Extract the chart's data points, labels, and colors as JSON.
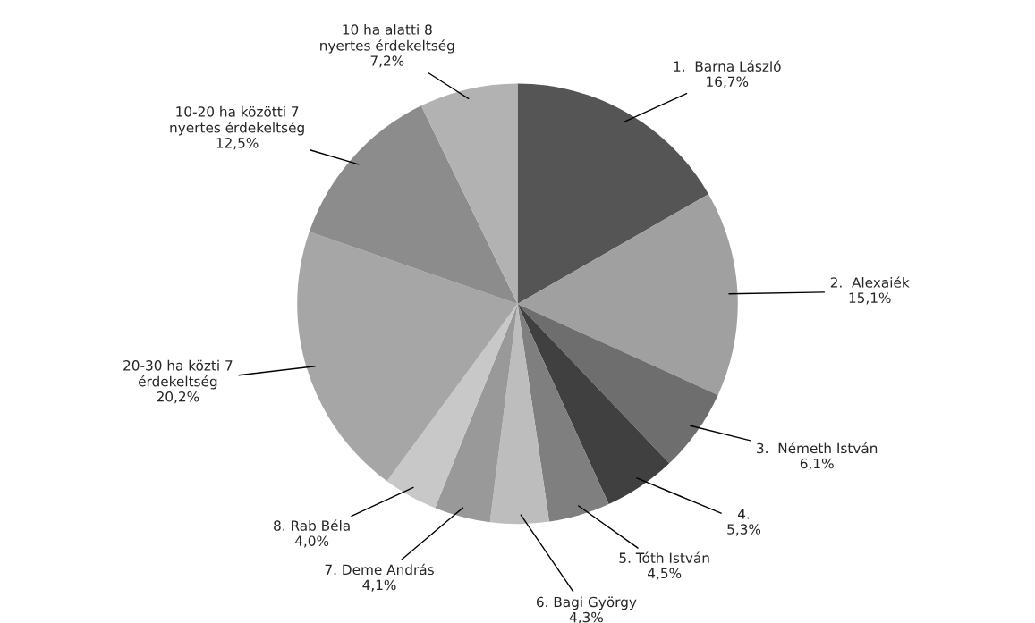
{
  "chart_data": {
    "type": "pie",
    "categories": [
      "1.  Barna László",
      "2.  Alexaiék",
      "3.  Németh István",
      "4.",
      "5. Tóth István",
      "6. Bagi György",
      "7. Deme András",
      "8. Rab Béla",
      "20-30 ha közti 7\nérdekeltség",
      "10-20 ha közötti 7\nnyertes érdekeltség",
      "10 ha alatti 8\nnyertes érdekeltség"
    ],
    "values": [
      16.7,
      15.1,
      6.1,
      5.3,
      4.5,
      4.3,
      4.1,
      4.0,
      20.2,
      12.5,
      7.2
    ],
    "value_labels": [
      "16,7%",
      "15,1%",
      "6,1%",
      "5,3%",
      "4,5%",
      "4,3%",
      "4,1%",
      "4,0%",
      "20,2%",
      "12,5%",
      "7,2%"
    ],
    "colors": [
      "#555555",
      "#a0a0a0",
      "#6e6e6e",
      "#404040",
      "#7f7f7f",
      "#bdbdbd",
      "#999999",
      "#c8c8c8",
      "#a6a6a6",
      "#8c8c8c",
      "#b2b2b2"
    ]
  }
}
